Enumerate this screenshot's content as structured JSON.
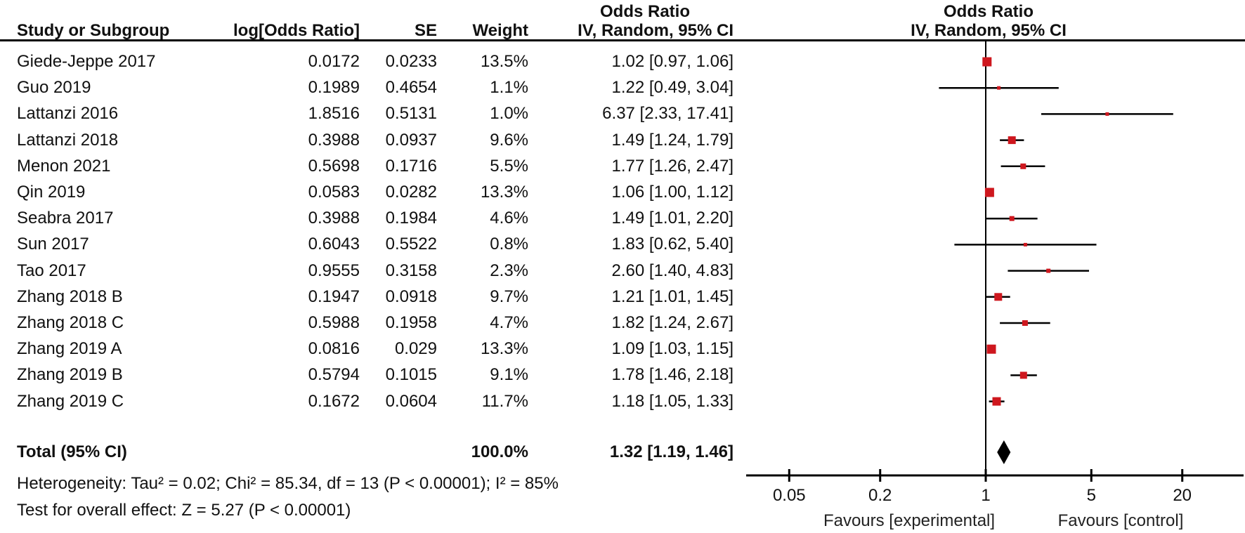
{
  "chart_data": {
    "type": "forest",
    "effect_label": "Odds Ratio",
    "method_label": "IV, Random, 95% CI",
    "headers": {
      "study": "Study or Subgroup",
      "log_or": "log[Odds Ratio]",
      "se": "SE",
      "weight": "Weight",
      "or_group": "Odds Ratio",
      "or_ci": "IV, Random, 95% CI",
      "plot_group": "Odds Ratio",
      "plot_ci": "IV, Random, 95% CI"
    },
    "studies": [
      {
        "name": "Giede-Jeppe 2017",
        "log_or": "0.0172",
        "se": "0.0233",
        "weight": "13.5%",
        "weight_pct": 13.5,
        "estimate": "1.02 [0.97, 1.06]",
        "or": 1.02,
        "ci_low": 0.97,
        "ci_high": 1.06
      },
      {
        "name": "Guo 2019",
        "log_or": "0.1989",
        "se": "0.4654",
        "weight": "1.1%",
        "weight_pct": 1.1,
        "estimate": "1.22 [0.49, 3.04]",
        "or": 1.22,
        "ci_low": 0.49,
        "ci_high": 3.04
      },
      {
        "name": "Lattanzi 2016",
        "log_or": "1.8516",
        "se": "0.5131",
        "weight": "1.0%",
        "weight_pct": 1.0,
        "estimate": "6.37 [2.33, 17.41]",
        "or": 6.37,
        "ci_low": 2.33,
        "ci_high": 17.41
      },
      {
        "name": "Lattanzi 2018",
        "log_or": "0.3988",
        "se": "0.0937",
        "weight": "9.6%",
        "weight_pct": 9.6,
        "estimate": "1.49 [1.24, 1.79]",
        "or": 1.49,
        "ci_low": 1.24,
        "ci_high": 1.79
      },
      {
        "name": "Menon 2021",
        "log_or": "0.5698",
        "se": "0.1716",
        "weight": "5.5%",
        "weight_pct": 5.5,
        "estimate": "1.77 [1.26, 2.47]",
        "or": 1.77,
        "ci_low": 1.26,
        "ci_high": 2.47
      },
      {
        "name": "Qin 2019",
        "log_or": "0.0583",
        "se": "0.0282",
        "weight": "13.3%",
        "weight_pct": 13.3,
        "estimate": "1.06 [1.00, 1.12]",
        "or": 1.06,
        "ci_low": 1.0,
        "ci_high": 1.12
      },
      {
        "name": "Seabra 2017",
        "log_or": "0.3988",
        "se": "0.1984",
        "weight": "4.6%",
        "weight_pct": 4.6,
        "estimate": "1.49 [1.01, 2.20]",
        "or": 1.49,
        "ci_low": 1.01,
        "ci_high": 2.2
      },
      {
        "name": "Sun 2017",
        "log_or": "0.6043",
        "se": "0.5522",
        "weight": "0.8%",
        "weight_pct": 0.8,
        "estimate": "1.83 [0.62, 5.40]",
        "or": 1.83,
        "ci_low": 0.62,
        "ci_high": 5.4
      },
      {
        "name": "Tao 2017",
        "log_or": "0.9555",
        "se": "0.3158",
        "weight": "2.3%",
        "weight_pct": 2.3,
        "estimate": "2.60 [1.40, 4.83]",
        "or": 2.6,
        "ci_low": 1.4,
        "ci_high": 4.83
      },
      {
        "name": "Zhang 2018 B",
        "log_or": "0.1947",
        "se": "0.0918",
        "weight": "9.7%",
        "weight_pct": 9.7,
        "estimate": "1.21 [1.01, 1.45]",
        "or": 1.21,
        "ci_low": 1.01,
        "ci_high": 1.45
      },
      {
        "name": "Zhang 2018 C",
        "log_or": "0.5988",
        "se": "0.1958",
        "weight": "4.7%",
        "weight_pct": 4.7,
        "estimate": "1.82 [1.24, 2.67]",
        "or": 1.82,
        "ci_low": 1.24,
        "ci_high": 2.67
      },
      {
        "name": "Zhang 2019 A",
        "log_or": "0.0816",
        "se": "0.029",
        "weight": "13.3%",
        "weight_pct": 13.3,
        "estimate": "1.09 [1.03, 1.15]",
        "or": 1.09,
        "ci_low": 1.03,
        "ci_high": 1.15
      },
      {
        "name": "Zhang 2019 B",
        "log_or": "0.5794",
        "se": "0.1015",
        "weight": "9.1%",
        "weight_pct": 9.1,
        "estimate": "1.78 [1.46, 2.18]",
        "or": 1.78,
        "ci_low": 1.46,
        "ci_high": 2.18
      },
      {
        "name": "Zhang 2019 C",
        "log_or": "0.1672",
        "se": "0.0604",
        "weight": "11.7%",
        "weight_pct": 11.7,
        "estimate": "1.18 [1.05, 1.33]",
        "or": 1.18,
        "ci_low": 1.05,
        "ci_high": 1.33
      }
    ],
    "total": {
      "label": "Total (95% CI)",
      "weight": "100.0%",
      "estimate": "1.32 [1.19, 1.46]",
      "or": 1.32,
      "ci_low": 1.19,
      "ci_high": 1.46
    },
    "heterogeneity": "Heterogeneity: Tau² = 0.02; Chi² = 85.34, df = 13 (P < 0.00001); I² = 85%",
    "overall_effect": "Test for overall effect: Z = 5.27 (P < 0.00001)",
    "axis": {
      "scale": "log",
      "ticks": [
        0.05,
        0.2,
        1,
        5,
        20
      ],
      "tick_labels": [
        "0.05",
        "0.2",
        "1",
        "5",
        "20"
      ]
    },
    "footer_labels": {
      "left": "Favours [experimental]",
      "right": "Favours [control]"
    },
    "colors": {
      "marker": "#ce171e",
      "diamond": "#000000",
      "line": "#000000"
    }
  }
}
